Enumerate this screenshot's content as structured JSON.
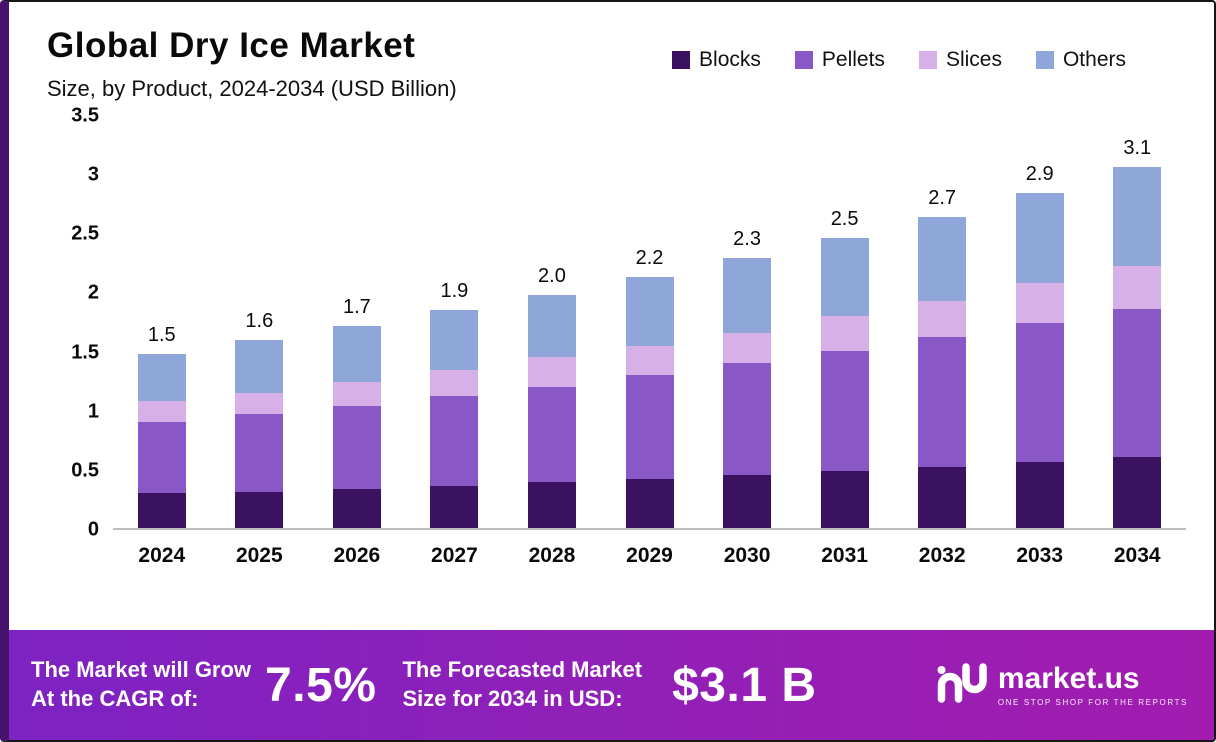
{
  "title": "Global Dry Ice Market",
  "subtitle": "Size, by Product, 2024-2034 (USD Billion)",
  "chart_data": {
    "type": "bar",
    "stacked": true,
    "title": "Global Dry Ice Market Size, by Product, 2024-2034 (USD Billion)",
    "categories": [
      "2024",
      "2025",
      "2026",
      "2027",
      "2028",
      "2029",
      "2030",
      "2031",
      "2032",
      "2033",
      "2034"
    ],
    "series": [
      {
        "name": "Blocks",
        "color": "#3b1260",
        "values": [
          0.3,
          0.31,
          0.33,
          0.36,
          0.39,
          0.42,
          0.45,
          0.48,
          0.52,
          0.56,
          0.6
        ]
      },
      {
        "name": "Pellets",
        "color": "#8a57c6",
        "values": [
          0.6,
          0.66,
          0.71,
          0.76,
          0.81,
          0.88,
          0.95,
          1.02,
          1.1,
          1.18,
          1.26
        ]
      },
      {
        "name": "Slices",
        "color": "#d7b0e8",
        "values": [
          0.18,
          0.18,
          0.2,
          0.22,
          0.25,
          0.25,
          0.26,
          0.3,
          0.31,
          0.34,
          0.37
        ]
      },
      {
        "name": "Others",
        "color": "#8ea6d8",
        "values": [
          0.4,
          0.45,
          0.48,
          0.51,
          0.53,
          0.58,
          0.63,
          0.66,
          0.71,
          0.77,
          0.84
        ]
      }
    ],
    "totals": [
      "1.5",
      "1.6",
      "1.7",
      "1.9",
      "2.0",
      "2.2",
      "2.3",
      "2.5",
      "2.7",
      "2.9",
      "3.1"
    ],
    "ylim": [
      0,
      3.5
    ],
    "yticks": [
      "3.5",
      "3",
      "2.5",
      "2",
      "1.5",
      "1",
      "0.5",
      "0"
    ],
    "grid": false,
    "legend_position": "top-right",
    "xlabel": "",
    "ylabel": ""
  },
  "banner": {
    "growth_line1": "The Market will Grow",
    "growth_line2": "At the CAGR of:",
    "cagr_value": "7.5%",
    "forecast_line1": "The Forecasted Market",
    "forecast_line2": "Size for 2034 in USD:",
    "forecast_value": "$3.1 B",
    "brand": "market.us",
    "brand_tagline": "ONE STOP SHOP FOR THE REPORTS"
  }
}
